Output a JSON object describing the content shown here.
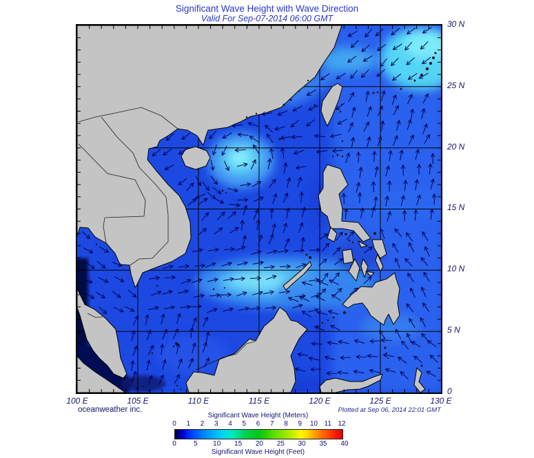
{
  "header": {
    "title": "Significant Wave Height with Wave Direction",
    "subtitle": "Valid For Sep-07-2014 06:00 GMT"
  },
  "footer": {
    "credit": "oceanweather inc.",
    "plotted": "Plotted at Sep 06, 2014 22:01 GMT"
  },
  "axes": {
    "lat_labels": [
      "30 N",
      "25 N",
      "20 N",
      "15 N",
      "10 N",
      "5 N",
      "0"
    ],
    "lon_labels": [
      "100 E",
      "105 E",
      "110 E",
      "115 E",
      "120 E",
      "125 E",
      "130 E"
    ],
    "lon_min": 100,
    "lon_max": 130,
    "lat_min": 0,
    "lat_max": 30,
    "grid_step_deg": 5,
    "tick_step_deg": 1
  },
  "legend": {
    "meters_title": "Significant Wave Height (Meters)",
    "feet_title": "Significant Wave Height (Feet)",
    "meters_ticks": [
      0,
      1,
      2,
      3,
      4,
      5,
      6,
      7,
      8,
      9,
      10,
      11,
      12
    ],
    "feet_ticks": [
      0,
      5,
      10,
      15,
      20,
      25,
      30,
      35,
      40
    ],
    "meters_max": 12,
    "gradient_stops": [
      [
        0,
        "#000030"
      ],
      [
        2,
        "#000080"
      ],
      [
        5,
        "#0000d2"
      ],
      [
        8.3,
        "#0030ff"
      ],
      [
        16.7,
        "#0080ff"
      ],
      [
        25,
        "#00c0ff"
      ],
      [
        29,
        "#00d8f0"
      ],
      [
        33.3,
        "#00e8c8"
      ],
      [
        37.5,
        "#00e096"
      ],
      [
        41.7,
        "#00d050"
      ],
      [
        50,
        "#00c818"
      ],
      [
        54,
        "#28d000"
      ],
      [
        58.3,
        "#58dc00"
      ],
      [
        66.7,
        "#a0e800"
      ],
      [
        72,
        "#d8f000"
      ],
      [
        75,
        "#f8f800"
      ],
      [
        79,
        "#ffd800"
      ],
      [
        83.3,
        "#ffa000"
      ],
      [
        87.5,
        "#ff7000"
      ],
      [
        91.7,
        "#ff4800"
      ],
      [
        96,
        "#f81800"
      ],
      [
        100,
        "#e80000"
      ]
    ]
  },
  "colors": {
    "title_text": "#2837cc",
    "axis_text": "#14146e",
    "ocean_base": "#1c49e2",
    "land": "#c4c4c4",
    "arrow": "#000055"
  },
  "map": {
    "storm": {
      "center_lon": 113.5,
      "center_lat": 19.1,
      "radius_deg": 4
    },
    "wave_arrow_regions": [
      {
        "name": "gulf-of-thailand",
        "lon": [
          100.4,
          105.6
        ],
        "lat": [
          6.2,
          13.2
        ],
        "dir": -32
      },
      {
        "name": "southern-scs",
        "lon": [
          104.2,
          111.6
        ],
        "lat": [
          0.4,
          6.4
        ],
        "dir": 72
      },
      {
        "name": "central-scs-band",
        "lon": [
          105.9,
          120.2
        ],
        "lat": [
          6.4,
          12.1
        ],
        "dir": 12
      },
      {
        "name": "west-mid-scs",
        "lon": [
          107.6,
          113.2
        ],
        "lat": [
          12.1,
          17.2
        ],
        "dir": 40
      },
      {
        "name": "east-mid-scs",
        "lon": [
          113.2,
          119.6
        ],
        "lat": [
          12.1,
          17.6
        ],
        "dir": 75
      },
      {
        "name": "north-scs-storm",
        "lon": [
          111.8,
          119.6
        ],
        "lat": [
          17.6,
          21.4
        ],
        "dir": 192
      },
      {
        "name": "gulf-of-tonkin",
        "lon": [
          105.9,
          111.8
        ],
        "lat": [
          15.8,
          21.4
        ],
        "dir": 215
      },
      {
        "name": "china-coast",
        "lon": [
          111.6,
          117.6
        ],
        "lat": [
          21.4,
          24.6
        ],
        "dir": 195
      },
      {
        "name": "taiwan-strait",
        "lon": [
          117.6,
          122.2
        ],
        "lat": [
          21.4,
          26.2
        ],
        "dir": 212
      },
      {
        "name": "east-china-sea",
        "lon": [
          122.2,
          130
        ],
        "lat": [
          24.6,
          30
        ],
        "dir": 220
      },
      {
        "name": "east-of-taiwan",
        "lon": [
          122.2,
          130
        ],
        "lat": [
          19.8,
          24.6
        ],
        "dir": 70
      },
      {
        "name": "philippine-sea-north",
        "lon": [
          121.6,
          130
        ],
        "lat": [
          13.4,
          19.8
        ],
        "dir": 82
      },
      {
        "name": "philippine-sea-south",
        "lon": [
          124.6,
          130
        ],
        "lat": [
          4.4,
          13.4
        ],
        "dir": 122
      },
      {
        "name": "sulu-sea",
        "lon": [
          117.2,
          122
        ],
        "lat": [
          4.9,
          9.4
        ],
        "dir": 155
      },
      {
        "name": "celebes-sea",
        "lon": [
          116.8,
          126.6
        ],
        "lat": [
          0.4,
          4.6
        ],
        "dir": 172
      },
      {
        "name": "molucca-sea",
        "lon": [
          126.4,
          130
        ],
        "lat": [
          0.4,
          4.4
        ],
        "dir": 140
      },
      {
        "name": "visayas",
        "lon": [
          119.8,
          124.8
        ],
        "lat": [
          7.9,
          13.4
        ],
        "dir": 45
      },
      {
        "name": "luzon-strait",
        "lon": [
          119.6,
          121.9
        ],
        "lat": [
          18.4,
          21.4
        ],
        "dir": 184
      }
    ]
  }
}
